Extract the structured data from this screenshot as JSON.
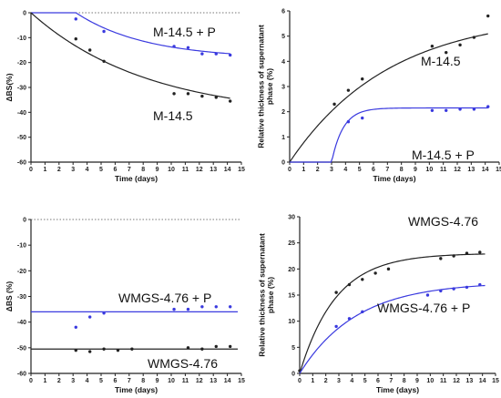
{
  "chart_data": [
    {
      "type": "scatter",
      "xlabel": "Time (days)",
      "ylabel": "ΔBS(%)",
      "xlim": [
        0,
        15
      ],
      "ylim": [
        -60,
        0
      ],
      "xticks": [
        0,
        1,
        2,
        3,
        4,
        5,
        6,
        7,
        8,
        9,
        10,
        11,
        12,
        13,
        14,
        15
      ],
      "yticks": [
        0,
        -10,
        -20,
        -30,
        -40,
        -50,
        -60
      ],
      "zero_line": true,
      "series": [
        {
          "name": "M-14.5 + P",
          "color": "#3a3adf",
          "points": [
            [
              3.2,
              -2.5
            ],
            [
              5.2,
              -7.5
            ],
            [
              10.2,
              -13.5
            ],
            [
              11.2,
              -14
            ],
            [
              12.2,
              -16.5
            ],
            [
              13.2,
              -16.5
            ],
            [
              14.2,
              -17
            ]
          ],
          "fit": "plateau",
          "fit_params": {
            "x0": 3.2,
            "plateau": -18.5,
            "k": 0.2
          }
        },
        {
          "name": "M-14.5",
          "color": "#222222",
          "points": [
            [
              3.2,
              -10.5
            ],
            [
              4.2,
              -15
            ],
            [
              5.2,
              -19.5
            ],
            [
              10.2,
              -32.5
            ],
            [
              11.2,
              -32.5
            ],
            [
              12.2,
              -33.5
            ],
            [
              13.2,
              -34
            ],
            [
              14.2,
              -35.5
            ]
          ],
          "fit": "plateau",
          "fit_params": {
            "x0": 0,
            "plateau": -42,
            "k": 0.12
          }
        }
      ]
    },
    {
      "type": "scatter",
      "xlabel": "Time (days)",
      "ylabel": "Relative thickness of supernatant phase (%)",
      "xlim": [
        0,
        15
      ],
      "ylim": [
        0,
        6
      ],
      "xticks": [
        0,
        1,
        2,
        3,
        4,
        5,
        6,
        7,
        8,
        9,
        10,
        11,
        12,
        13,
        14,
        15
      ],
      "yticks": [
        0,
        1,
        2,
        3,
        4,
        5,
        6
      ],
      "series": [
        {
          "name": "M-14.5",
          "color": "#222222",
          "points": [
            [
              3.2,
              2.3
            ],
            [
              4.2,
              2.85
            ],
            [
              5.2,
              3.3
            ],
            [
              10.2,
              4.6
            ],
            [
              11.2,
              4.35
            ],
            [
              12.2,
              4.65
            ],
            [
              13.2,
              4.95
            ],
            [
              14.2,
              5.8
            ]
          ],
          "fit": "plateau",
          "fit_params": {
            "x0": 0,
            "plateau": 5.9,
            "k": 0.14
          }
        },
        {
          "name": "M-14.5 + P",
          "color": "#3a3adf",
          "points": [
            [
              4.2,
              1.6
            ],
            [
              5.2,
              1.75
            ],
            [
              10.2,
              2.05
            ],
            [
              11.2,
              2.05
            ],
            [
              12.2,
              2.1
            ],
            [
              13.2,
              2.1
            ],
            [
              14.2,
              2.2
            ]
          ],
          "fit": "plateau",
          "fit_params": {
            "x0": 3.0,
            "plateau": 2.15,
            "k": 1.2
          }
        }
      ]
    },
    {
      "type": "scatter",
      "xlabel": "Time (days)",
      "ylabel": "ΔBS (%)",
      "xlim": [
        0,
        15
      ],
      "ylim": [
        -60,
        0
      ],
      "xticks": [
        0,
        1,
        2,
        3,
        4,
        5,
        6,
        7,
        8,
        9,
        10,
        11,
        12,
        13,
        14,
        15
      ],
      "yticks": [
        0,
        -10,
        -20,
        -30,
        -40,
        -50,
        -60
      ],
      "zero_line": true,
      "series": [
        {
          "name": "WMGS-4.76 + P",
          "color": "#3a3adf",
          "points": [
            [
              3.2,
              -42
            ],
            [
              4.2,
              -38
            ],
            [
              5.2,
              -36.5
            ],
            [
              10.2,
              -35
            ],
            [
              11.2,
              -35
            ],
            [
              12.2,
              -34
            ],
            [
              13.2,
              -34
            ],
            [
              14.2,
              -34
            ]
          ],
          "fit": "constant",
          "fit_params": {
            "value": -36
          }
        },
        {
          "name": "WMGS-4.76",
          "color": "#222222",
          "points": [
            [
              3.2,
              -51
            ],
            [
              4.2,
              -51.5
            ],
            [
              5.2,
              -50.5
            ],
            [
              6.2,
              -51
            ],
            [
              7.2,
              -50.5
            ],
            [
              11.2,
              -50
            ],
            [
              12.2,
              -50.5
            ],
            [
              13.2,
              -49.5
            ],
            [
              14.2,
              -49.5
            ]
          ],
          "fit": "constant",
          "fit_params": {
            "value": -50.5
          }
        }
      ]
    },
    {
      "type": "scatter",
      "xlabel": "Time (days)",
      "ylabel": "Relative thickness of supernatant phase (%)",
      "xlim": [
        0,
        15
      ],
      "ylim": [
        0,
        30
      ],
      "xticks": [
        0,
        1,
        2,
        3,
        4,
        5,
        6,
        7,
        8,
        9,
        10,
        11,
        12,
        13,
        14,
        15
      ],
      "yticks": [
        0,
        5,
        10,
        15,
        20,
        25,
        30
      ],
      "series": [
        {
          "name": "WMGS-4.76",
          "color": "#222222",
          "points": [
            [
              0,
              0.5
            ],
            [
              2.8,
              15.5
            ],
            [
              3.8,
              17
            ],
            [
              4.8,
              18
            ],
            [
              5.8,
              19.2
            ],
            [
              6.8,
              20
            ],
            [
              10.8,
              22
            ],
            [
              11.8,
              22.5
            ],
            [
              12.8,
              23
            ],
            [
              13.8,
              23.2
            ]
          ],
          "fit": "plateau",
          "fit_params": {
            "x0": 0,
            "plateau": 23,
            "k": 0.36
          }
        },
        {
          "name": "WMGS-4.76 + P",
          "color": "#3a3adf",
          "points": [
            [
              2.8,
              9
            ],
            [
              3.8,
              10.5
            ],
            [
              4.8,
              11.8
            ],
            [
              9.8,
              15
            ],
            [
              10.8,
              15.8
            ],
            [
              11.8,
              16.2
            ],
            [
              12.8,
              16.5
            ],
            [
              13.8,
              17
            ]
          ],
          "fit": "plateau",
          "fit_params": {
            "x0": 0,
            "plateau": 17.5,
            "k": 0.23
          }
        }
      ]
    }
  ],
  "panel_labels": [
    [
      {
        "text": "M-14.5 + P"
      },
      {
        "text": "M-14.5"
      }
    ],
    [
      {
        "text": "M-14.5"
      },
      {
        "text": "M-14.5 + P"
      }
    ],
    [
      {
        "text": "WMGS-4.76 + P"
      },
      {
        "text": "WMGS-4.76"
      }
    ],
    [
      {
        "text": "WMGS-4.76"
      },
      {
        "text": "WMGS-4.76 + P"
      }
    ]
  ],
  "colors": {
    "axis": "#222222",
    "blue": "#3a3adf",
    "black": "#222222",
    "zero_line": "#777777"
  }
}
